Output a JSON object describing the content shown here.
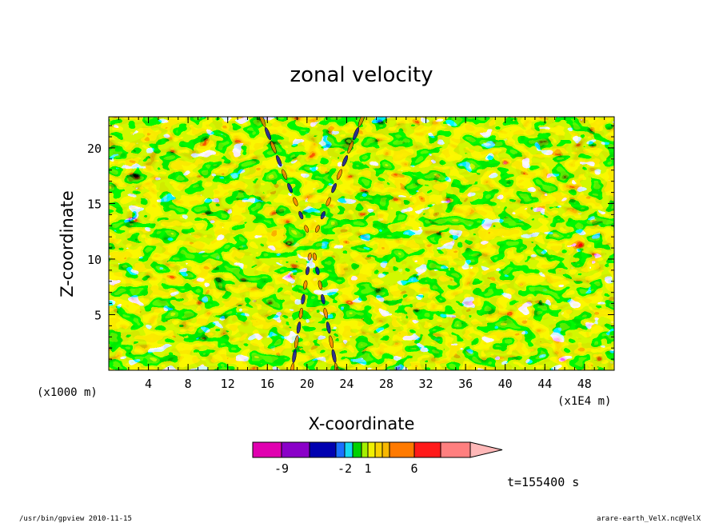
{
  "chart_data": {
    "type": "heatmap",
    "title": "zonal velocity",
    "xlabel": "X-coordinate",
    "ylabel": "Z-coordinate",
    "x_unit_label": "(x1E4 m)",
    "y_unit_label": "(x1000 m)",
    "xlim": [
      0,
      51
    ],
    "ylim": [
      0,
      22.8
    ],
    "x_ticks": [
      4,
      8,
      12,
      16,
      20,
      24,
      28,
      32,
      36,
      40,
      44,
      48
    ],
    "y_ticks": [
      5,
      10,
      15,
      20
    ],
    "x_minor_step": 1,
    "y_minor_step": 1,
    "grid": false,
    "time_label": "t=155400 s",
    "colorbar": {
      "orientation": "horizontal",
      "placement": "bottom",
      "levels": [
        -12,
        -9,
        -6,
        -3,
        -2,
        -1,
        0,
        1,
        2,
        3,
        4,
        6,
        9,
        12
      ],
      "colors": [
        "#e000b0",
        "#8a00c8",
        "#0000b0",
        "#1a70ff",
        "#16d8f2",
        "#00d200",
        "#a4f000",
        "#f0f000",
        "#f8d200",
        "#f8b800",
        "#ff7a00",
        "#ff1a1a",
        "#ff7f7f",
        "#ffb8b8"
      ],
      "labels": [
        {
          "text": "-9",
          "at": -9
        },
        {
          "text": "-2",
          "at": -2
        },
        {
          "text": "1",
          "at": 1
        },
        {
          "text": "6",
          "at": 6
        }
      ]
    }
  },
  "footer": {
    "left": "/usr/bin/gpview   2010-11-15",
    "right": "arare-earth_VelX.nc@VelX"
  }
}
